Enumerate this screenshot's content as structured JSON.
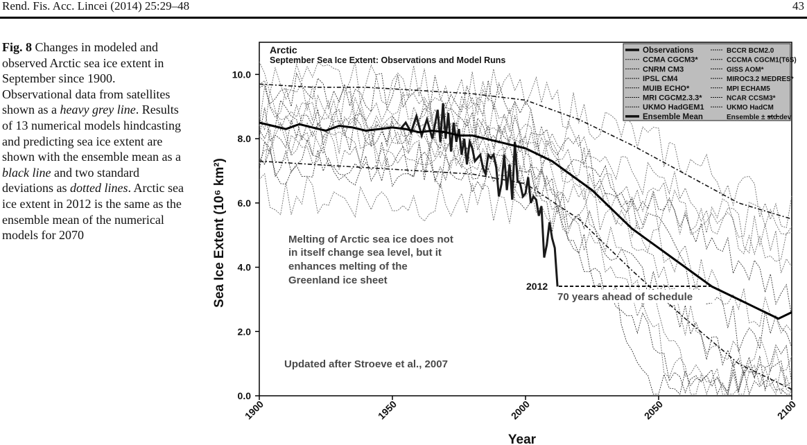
{
  "header": {
    "journal": "Rend. Fis. Acc. Lincei (2014) 25:29–48",
    "page_number": "43"
  },
  "caption": {
    "label": "Fig. 8",
    "text_1": "Changes in modeled and observed Arctic sea ice extent in September since 1900. Observational data from satellites shown as a ",
    "em_1": "heavy grey line",
    "text_2": ". Results of 13 numerical models hindcasting and predicting sea ice extent are shown with the ensemble mean as a ",
    "em_2": "black line",
    "text_3": " and two standard deviations as ",
    "em_3": "dotted lines",
    "text_4": ". Arctic sea ice extent in 2012 is the same as the ensemble mean of the numerical models for 2070"
  },
  "colors": {
    "observations": "#1a1a1a",
    "ensemble_mean": "#000000",
    "models": "#555555",
    "legend_bg": "#bdbdbd",
    "annotation_text": "#4a4a4a"
  },
  "chart_data": {
    "type": "line",
    "title": "Arctic",
    "subtitle": "September Sea Ice Extent: Observations and Model Runs",
    "xlabel": "Year",
    "ylabel": "Sea Ice Extent (10⁶ km²)",
    "xlim": [
      1900,
      2100
    ],
    "ylim": [
      0,
      11
    ],
    "x_ticks": [
      "1900",
      "1950",
      "2000",
      "2050",
      "2100"
    ],
    "y_ticks": [
      "0.0",
      "2.0",
      "4.0",
      "6.0",
      "8.0",
      "10.0"
    ],
    "grid": false,
    "legend_position": "top-right",
    "legend_left": [
      "Observations",
      "CCMA CGCM3*",
      "CNRM CM3",
      "IPSL CM4",
      "MUIB ECHO*",
      "MRI CGCM2.3.3*",
      "UKMO HadGEM1",
      "Ensemble Mean"
    ],
    "legend_right": [
      "BCCR BCM2.0",
      "CCCMA CGCM1(T6S)",
      "GISS AOM*",
      "MIROC3.2 MEDRES*",
      "MPI ECHAM5",
      "NCAR CCSM3*",
      "UKMO HadCM",
      "Ensemble ± std.dev"
    ],
    "annotations": {
      "melting_note": [
        "Melting of Arctic sea ice does not",
        "in itself change sea level, but it",
        "enhances melting of the",
        "Greenland ice sheet"
      ],
      "year_2012": "2012",
      "ahead_note": "70 years ahead of schedule",
      "credit": "Updated after Stroeve et al., 2007"
    },
    "series": [
      {
        "name": "Observations",
        "x": [
          1953,
          1955,
          1957,
          1959,
          1961,
          1963,
          1965,
          1967,
          1968,
          1969,
          1970,
          1971,
          1972,
          1973,
          1974,
          1975,
          1976,
          1977,
          1978,
          1979,
          1980,
          1981,
          1982,
          1983,
          1984,
          1985,
          1986,
          1987,
          1988,
          1989,
          1990,
          1991,
          1992,
          1993,
          1994,
          1995,
          1996,
          1997,
          1998,
          1999,
          2000,
          2001,
          2002,
          2003,
          2004,
          2005,
          2006,
          2007,
          2008,
          2009,
          2010,
          2011,
          2012
        ],
        "values": [
          8.3,
          8.5,
          8.2,
          8.7,
          8.1,
          8.6,
          8.0,
          8.9,
          7.9,
          9.1,
          8.0,
          8.8,
          7.6,
          8.5,
          7.9,
          8.3,
          7.5,
          8.0,
          7.2,
          7.9,
          7.7,
          7.3,
          7.4,
          7.5,
          7.1,
          6.9,
          7.5,
          7.4,
          7.5,
          7.1,
          6.2,
          6.6,
          7.5,
          6.4,
          7.2,
          6.1,
          7.9,
          6.7,
          6.6,
          6.2,
          6.3,
          6.8,
          6.0,
          6.2,
          6.1,
          5.6,
          5.9,
          4.3,
          4.7,
          5.4,
          4.9,
          4.6,
          3.4
        ]
      },
      {
        "name": "Ensemble Mean",
        "x": [
          1900,
          1905,
          1910,
          1915,
          1920,
          1925,
          1930,
          1935,
          1940,
          1945,
          1950,
          1955,
          1960,
          1965,
          1970,
          1975,
          1980,
          1985,
          1990,
          1995,
          2000,
          2005,
          2010,
          2015,
          2020,
          2025,
          2030,
          2035,
          2040,
          2045,
          2050,
          2055,
          2060,
          2065,
          2070,
          2075,
          2080,
          2085,
          2090,
          2095,
          2100
        ],
        "values": [
          8.5,
          8.4,
          8.3,
          8.45,
          8.35,
          8.25,
          8.4,
          8.35,
          8.25,
          8.3,
          8.35,
          8.3,
          8.2,
          8.25,
          8.2,
          8.1,
          8.1,
          8.0,
          7.9,
          7.8,
          7.7,
          7.5,
          7.3,
          7.0,
          6.7,
          6.4,
          6.0,
          5.6,
          5.2,
          4.9,
          4.6,
          4.3,
          4.0,
          3.7,
          3.4,
          3.2,
          3.0,
          2.8,
          2.6,
          2.4,
          2.6
        ]
      },
      {
        "name": "Ensemble + std.dev",
        "x": [
          1900,
          1920,
          1940,
          1960,
          1980,
          2000,
          2020,
          2040,
          2060,
          2080,
          2100
        ],
        "values": [
          9.7,
          9.6,
          9.6,
          9.5,
          9.4,
          9.2,
          8.6,
          7.8,
          6.9,
          6.0,
          5.5
        ]
      },
      {
        "name": "Ensemble - std.dev",
        "x": [
          1900,
          1920,
          1940,
          1960,
          1980,
          2000,
          2020,
          2040,
          2060,
          2080,
          2100
        ],
        "values": [
          7.3,
          7.2,
          7.1,
          7.0,
          6.9,
          6.6,
          5.5,
          3.9,
          2.4,
          1.0,
          0.2
        ]
      }
    ]
  }
}
